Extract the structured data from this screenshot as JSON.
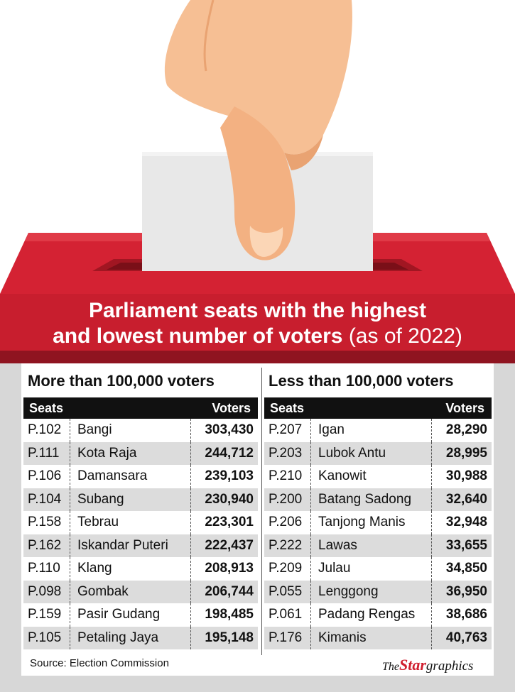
{
  "title": {
    "line1": "Parliament seats with the highest",
    "line2_bold": "and lowest number of voters",
    "line2_thin": " (as of 2022)"
  },
  "colors": {
    "banner_red": "#c81e2e",
    "banner_dark": "#8f1420",
    "skin": "#f6bf94",
    "slot": "#e8e8e8"
  },
  "left": {
    "heading": "More than 100,000 voters",
    "col_seats": "Seats",
    "col_voters": "Voters",
    "rows": [
      {
        "code": "P.102",
        "name": "Bangi",
        "voters": "303,430"
      },
      {
        "code": "P.111",
        "name": "Kota Raja",
        "voters": "244,712"
      },
      {
        "code": "P.106",
        "name": "Damansara",
        "voters": "239,103"
      },
      {
        "code": "P.104",
        "name": "Subang",
        "voters": "230,940"
      },
      {
        "code": "P.158",
        "name": "Tebrau",
        "voters": "223,301"
      },
      {
        "code": "P.162",
        "name": "Iskandar Puteri",
        "voters": "222,437"
      },
      {
        "code": "P.110",
        "name": "Klang",
        "voters": "208,913"
      },
      {
        "code": "P.098",
        "name": "Gombak",
        "voters": "206,744"
      },
      {
        "code": "P.159",
        "name": "Pasir Gudang",
        "voters": "198,485"
      },
      {
        "code": "P.105",
        "name": "Petaling Jaya",
        "voters": "195,148"
      }
    ]
  },
  "right": {
    "heading": "Less than 100,000 voters",
    "col_seats": "Seats",
    "col_voters": "Voters",
    "rows": [
      {
        "code": "P.207",
        "name": "Igan",
        "voters": "28,290"
      },
      {
        "code": "P.203",
        "name": "Lubok Antu",
        "voters": "28,995"
      },
      {
        "code": "P.210",
        "name": "Kanowit",
        "voters": "30,988"
      },
      {
        "code": "P.200",
        "name": "Batang Sadong",
        "voters": "32,640"
      },
      {
        "code": "P.206",
        "name": "Tanjong Manis",
        "voters": "32,948"
      },
      {
        "code": "P.222",
        "name": "Lawas",
        "voters": "33,655"
      },
      {
        "code": "P.209",
        "name": "Julau",
        "voters": "34,850"
      },
      {
        "code": "P.055",
        "name": "Lenggong",
        "voters": "36,950"
      },
      {
        "code": "P.061",
        "name": "Padang Rengas",
        "voters": "38,686"
      },
      {
        "code": "P.176",
        "name": "Kimanis",
        "voters": "40,763"
      }
    ]
  },
  "footer": {
    "source": "Source: Election Commission",
    "brand_the": "The",
    "brand_star": "Star",
    "brand_graphics": "graphics"
  },
  "illustration": {
    "hand_icon": "hand-icon",
    "ballot_paper": "ballot-paper-icon",
    "ballot_box": "ballot-box-icon"
  }
}
